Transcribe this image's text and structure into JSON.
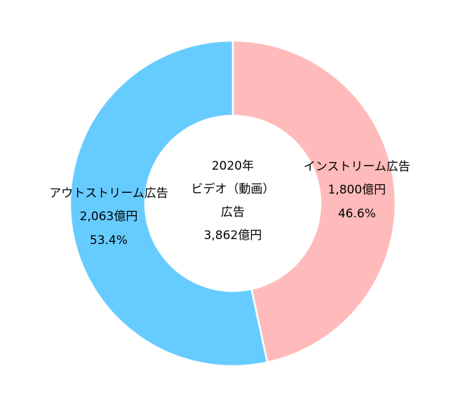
{
  "chart_data": {
    "type": "donut",
    "categories": [
      "インストリーム広告",
      "アウトストリーム広告"
    ],
    "values": [
      1800,
      2063
    ],
    "value_labels": [
      "1,800億円",
      "2,063億円"
    ],
    "percent_labels": [
      "46.6%",
      "53.4%"
    ],
    "colors": [
      "#ffbbbb",
      "#66ccff"
    ],
    "center_text": [
      "2020年",
      "ビデオ（動画）",
      "広告",
      "3,862億円"
    ]
  }
}
